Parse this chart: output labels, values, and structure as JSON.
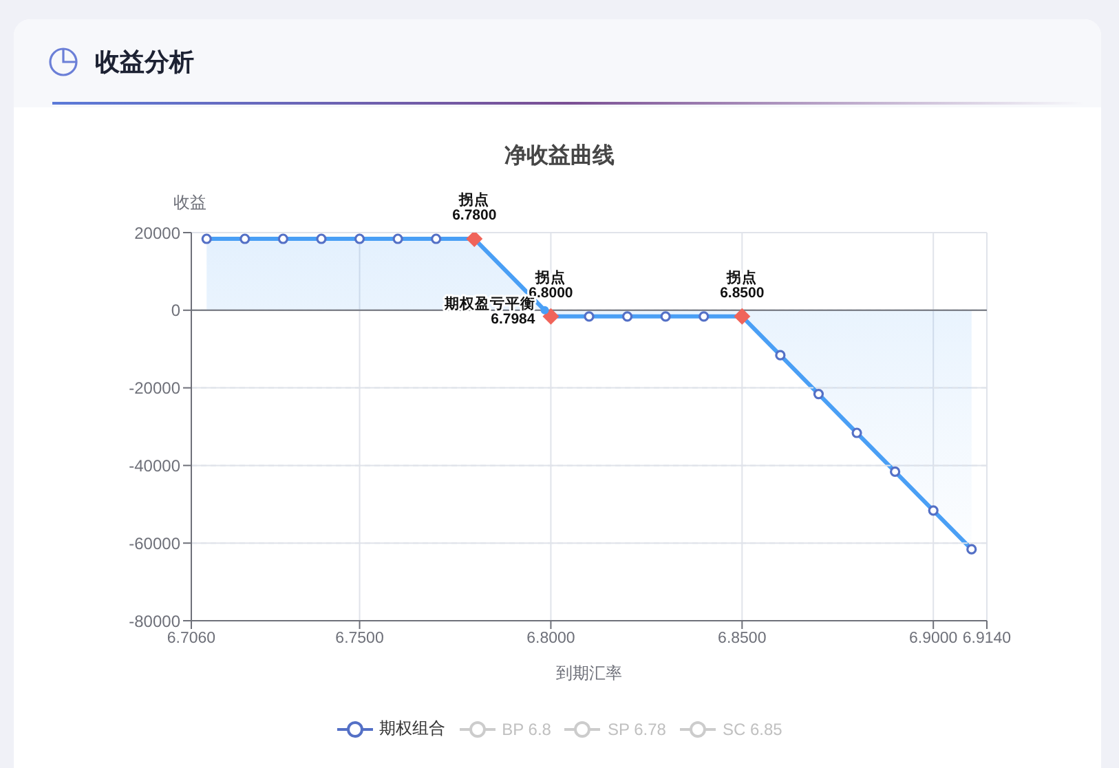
{
  "chart_data": {
    "type": "area",
    "title": "收益分析",
    "subtitle": "净收益曲线",
    "xlabel": "到期汇率",
    "ylabel": "收益",
    "xlim": [
      6.706,
      6.914
    ],
    "xticks": [
      {
        "value": 6.706,
        "label": "6.7060"
      },
      {
        "value": 6.75,
        "label": "6.7500"
      },
      {
        "value": 6.8,
        "label": "6.8000"
      },
      {
        "value": 6.85,
        "label": "6.8500"
      },
      {
        "value": 6.9,
        "label": "6.9000"
      },
      {
        "value": 6.914,
        "label": "6.9140"
      }
    ],
    "ylim": [
      -80000,
      20000
    ],
    "yticks": [
      -80000,
      -60000,
      -40000,
      -20000,
      0,
      20000
    ],
    "grid": true,
    "legend": "bottom",
    "marker": "circle",
    "series": [
      {
        "name": "期权组合",
        "color": "#4a9ff5",
        "x": [
          6.71,
          6.72,
          6.73,
          6.74,
          6.75,
          6.76,
          6.77,
          6.78,
          6.7984,
          6.8,
          6.81,
          6.82,
          6.83,
          6.84,
          6.85,
          6.86,
          6.87,
          6.88,
          6.89,
          6.9,
          6.91
        ],
        "values": [
          18400,
          18400,
          18400,
          18400,
          18400,
          18400,
          18400,
          18400,
          0,
          -1600,
          -1600,
          -1600,
          -1600,
          -1600,
          -1600,
          -11600,
          -21600,
          -31600,
          -41600,
          -51600,
          -61600
        ]
      },
      {
        "name": "BP 6.8",
        "color": "#cccccc",
        "type": "line",
        "values": [
          null
        ]
      },
      {
        "name": "SP 6.78",
        "color": "#cccccc",
        "type": "line",
        "values": [
          null
        ]
      },
      {
        "name": "SC 6.85",
        "color": "#cccccc",
        "type": "line",
        "values": [
          null
        ]
      },
      {
        "type": "scatter",
        "marker": "diamond",
        "color": "#f0645a",
        "x": [
          6.78,
          6.8,
          6.85
        ],
        "values": [
          18400,
          -1600,
          -1600
        ]
      },
      {
        "type": "scatter",
        "marker": "circle",
        "color": "#4a9ff5",
        "x": [
          6.7984
        ],
        "values": [
          0
        ]
      }
    ],
    "annotations": [
      {
        "text": "拐点\n6.7800",
        "x": 6.78,
        "y": 18400
      },
      {
        "text": "拐点\n6.8000",
        "x": 6.8,
        "y": -1600
      },
      {
        "text": "期权盈亏平衡\n6.7984",
        "x": 6.7984,
        "y": 0
      },
      {
        "text": "拐点\n6.8500",
        "x": 6.85,
        "y": -1600
      }
    ]
  }
}
